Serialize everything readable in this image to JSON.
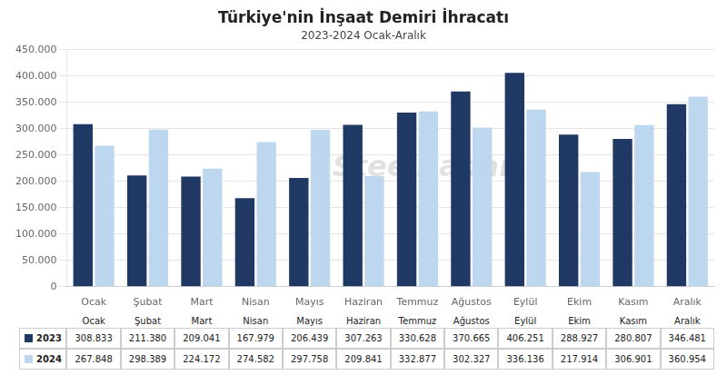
{
  "chart_data": {
    "type": "bar",
    "title": "Türkiye'nin İnşaat Demiri İhracatı",
    "subtitle": "2023-2024 Ocak-Aralık",
    "categories": [
      "Ocak",
      "Şubat",
      "Mart",
      "Nisan",
      "Mayıs",
      "Haziran",
      "Temmuz",
      "Ağustos",
      "Eylül",
      "Ekim",
      "Kasım",
      "Aralık"
    ],
    "series": [
      {
        "name": "2023",
        "color": "#1F3864",
        "values": [
          308833,
          211380,
          209041,
          167979,
          206439,
          307263,
          330628,
          370665,
          406251,
          288927,
          280807,
          346481
        ],
        "value_labels": [
          "308.833",
          "211.380",
          "209.041",
          "167.979",
          "206.439",
          "307.263",
          "330.628",
          "370.665",
          "406.251",
          "288.927",
          "280.807",
          "346.481"
        ]
      },
      {
        "name": "2024",
        "color": "#BDD7EE",
        "values": [
          267848,
          298389,
          224172,
          274582,
          297758,
          209841,
          332877,
          302327,
          336136,
          217914,
          306901,
          360954
        ],
        "value_labels": [
          "267.848",
          "298.389",
          "224.172",
          "274.582",
          "297.758",
          "209.841",
          "332.877",
          "302.327",
          "336.136",
          "217.914",
          "306.901",
          "360.954"
        ]
      }
    ],
    "ylim": [
      0,
      450000
    ],
    "yticks": [
      0,
      {
        "value": 50000,
        "label": "50.000"
      },
      {
        "value": 100000,
        "label": "100.000"
      },
      {
        "value": 150000,
        "label": "150.000"
      },
      {
        "value": 200000,
        "label": "200.000"
      },
      {
        "value": 250000,
        "label": "250.000"
      },
      {
        "value": 300000,
        "label": "300.000"
      },
      {
        "value": 350000,
        "label": "350.000"
      },
      {
        "value": 400000,
        "label": "400.000"
      },
      {
        "value": 450000,
        "label": "450.000"
      }
    ],
    "grid": true,
    "annotations": [
      "SteelRadar"
    ]
  }
}
